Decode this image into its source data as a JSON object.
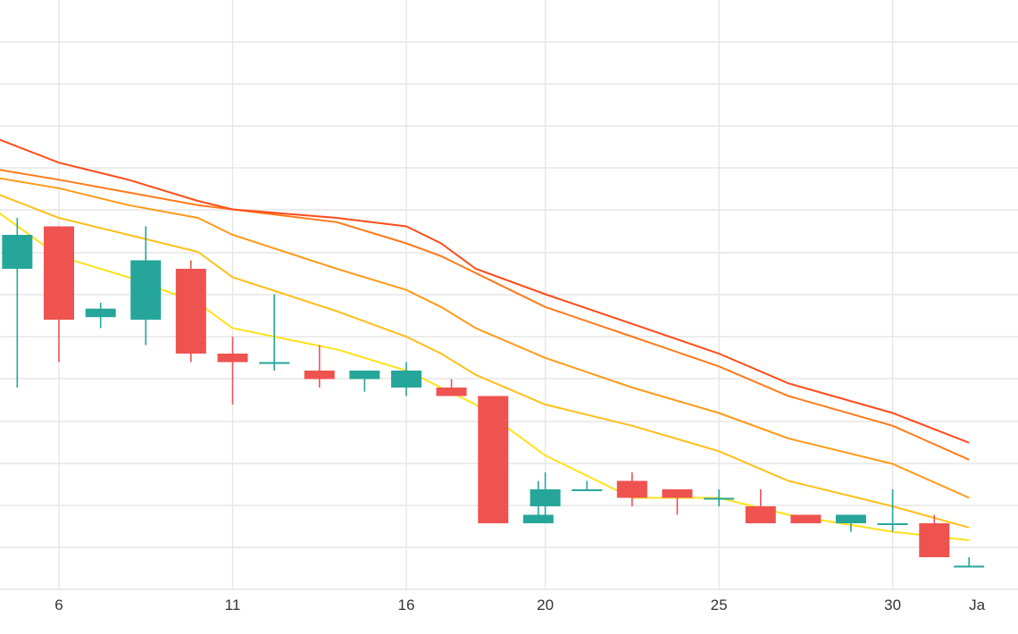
{
  "chart_data": {
    "type": "candlestick",
    "title": "",
    "xlabel": "",
    "ylabel": "",
    "grid": true,
    "y_axis_labels_visible": false,
    "x_tick_labels": [
      {
        "label": "6",
        "day": 6
      },
      {
        "label": "11",
        "day": 11
      },
      {
        "label": "16",
        "day": 16
      },
      {
        "label": "20",
        "day": 20
      },
      {
        "label": "25",
        "day": 25
      },
      {
        "label": "30",
        "day": 30
      },
      {
        "label": "Ja",
        "day": 32.2
      }
    ],
    "colors": {
      "up": "#26a69a",
      "down": "#ef5350",
      "grid": "#e6e6e6"
    },
    "candles": [
      {
        "day": 4.8,
        "open": 8.8,
        "high": 9.4,
        "low": 7.4,
        "close": 9.2
      },
      {
        "day": 6.0,
        "open": 9.3,
        "high": 9.3,
        "low": 7.7,
        "close": 8.2
      },
      {
        "day": 7.2,
        "open": 8.23,
        "high": 8.4,
        "low": 8.1,
        "close": 8.33
      },
      {
        "day": 8.5,
        "open": 8.2,
        "high": 9.3,
        "low": 7.9,
        "close": 8.9
      },
      {
        "day": 9.8,
        "open": 8.8,
        "high": 8.9,
        "low": 7.7,
        "close": 7.8
      },
      {
        "day": 11.0,
        "open": 7.8,
        "high": 8.0,
        "low": 7.2,
        "close": 7.7
      },
      {
        "day": 12.2,
        "open": 7.7,
        "high": 8.5,
        "low": 7.6,
        "close": 7.7
      },
      {
        "day": 13.5,
        "open": 7.6,
        "high": 7.9,
        "low": 7.4,
        "close": 7.5
      },
      {
        "day": 14.8,
        "open": 7.5,
        "high": 7.6,
        "low": 7.35,
        "close": 7.6
      },
      {
        "day": 16.0,
        "open": 7.4,
        "high": 7.7,
        "low": 7.3,
        "close": 7.6
      },
      {
        "day": 17.3,
        "open": 7.4,
        "high": 7.5,
        "low": 7.3,
        "close": 7.3
      },
      {
        "day": 18.5,
        "open": 7.3,
        "high": 7.3,
        "low": 5.8,
        "close": 5.8
      },
      {
        "day": 19.8,
        "open": 5.8,
        "high": 6.3,
        "low": 5.8,
        "close": 5.9
      },
      {
        "day": 20.0,
        "open": 6.0,
        "high": 6.4,
        "low": 5.9,
        "close": 6.2
      },
      {
        "day": 21.2,
        "open": 6.2,
        "high": 6.3,
        "low": 6.2,
        "close": 6.2
      },
      {
        "day": 22.5,
        "open": 6.3,
        "high": 6.4,
        "low": 6.0,
        "close": 6.1
      },
      {
        "day": 23.8,
        "open": 6.2,
        "high": 6.2,
        "low": 5.9,
        "close": 6.1
      },
      {
        "day": 25.0,
        "open": 6.1,
        "high": 6.2,
        "low": 6.0,
        "close": 6.1
      },
      {
        "day": 26.2,
        "open": 6.0,
        "high": 6.2,
        "low": 5.8,
        "close": 5.8
      },
      {
        "day": 27.5,
        "open": 5.9,
        "high": 5.9,
        "low": 5.8,
        "close": 5.8
      },
      {
        "day": 28.8,
        "open": 5.8,
        "high": 5.9,
        "low": 5.7,
        "close": 5.9
      },
      {
        "day": 30.0,
        "open": 5.8,
        "high": 6.2,
        "low": 5.7,
        "close": 5.8
      },
      {
        "day": 31.2,
        "open": 5.8,
        "high": 5.9,
        "low": 5.4,
        "close": 5.4
      },
      {
        "day": 32.2,
        "open": 5.3,
        "high": 5.4,
        "low": 5.3,
        "close": 5.3
      }
    ],
    "moving_averages": [
      {
        "color": "#ffe11a",
        "points": [
          [
            3.8,
            9.6
          ],
          [
            6,
            8.95
          ],
          [
            8,
            8.7
          ],
          [
            10,
            8.4
          ],
          [
            11,
            8.1
          ],
          [
            14,
            7.85
          ],
          [
            16,
            7.6
          ],
          [
            17,
            7.4
          ],
          [
            18,
            7.2
          ],
          [
            20,
            6.6
          ],
          [
            21,
            6.4
          ],
          [
            22.5,
            6.1
          ],
          [
            25,
            6.1
          ],
          [
            27,
            5.9
          ],
          [
            30,
            5.7
          ],
          [
            32.2,
            5.6
          ]
        ]
      },
      {
        "color": "#ffbf1a",
        "points": [
          [
            3.8,
            9.75
          ],
          [
            6,
            9.4
          ],
          [
            8,
            9.2
          ],
          [
            10,
            9.0
          ],
          [
            11,
            8.7
          ],
          [
            14,
            8.3
          ],
          [
            16,
            8.0
          ],
          [
            17,
            7.8
          ],
          [
            18,
            7.55
          ],
          [
            20,
            7.2
          ],
          [
            22.5,
            6.95
          ],
          [
            25,
            6.65
          ],
          [
            27,
            6.3
          ],
          [
            30,
            6.0
          ],
          [
            32.2,
            5.75
          ]
        ]
      },
      {
        "color": "#ff9a1a",
        "points": [
          [
            3.8,
            9.9
          ],
          [
            6,
            9.75
          ],
          [
            8,
            9.55
          ],
          [
            10,
            9.4
          ],
          [
            11,
            9.2
          ],
          [
            14,
            8.8
          ],
          [
            16,
            8.55
          ],
          [
            17,
            8.35
          ],
          [
            18,
            8.1
          ],
          [
            20,
            7.75
          ],
          [
            22.5,
            7.4
          ],
          [
            25,
            7.1
          ],
          [
            27,
            6.8
          ],
          [
            30,
            6.5
          ],
          [
            32.2,
            6.1
          ]
        ]
      },
      {
        "color": "#ff7a1a",
        "points": [
          [
            3.8,
            10.0
          ],
          [
            6,
            9.85
          ],
          [
            8,
            9.7
          ],
          [
            10,
            9.55
          ],
          [
            11,
            9.5
          ],
          [
            14,
            9.35
          ],
          [
            16,
            9.1
          ],
          [
            17,
            8.95
          ],
          [
            18,
            8.75
          ],
          [
            20,
            8.35
          ],
          [
            22.5,
            8.0
          ],
          [
            25,
            7.65
          ],
          [
            27,
            7.3
          ],
          [
            30,
            6.95
          ],
          [
            32.2,
            6.55
          ]
        ]
      },
      {
        "color": "#ff4c1a",
        "points": [
          [
            3.8,
            10.4
          ],
          [
            6,
            10.05
          ],
          [
            8,
            9.85
          ],
          [
            10,
            9.6
          ],
          [
            11,
            9.5
          ],
          [
            14,
            9.4
          ],
          [
            16,
            9.3
          ],
          [
            17,
            9.1
          ],
          [
            18,
            8.8
          ],
          [
            20,
            8.5
          ],
          [
            22.5,
            8.15
          ],
          [
            25,
            7.8
          ],
          [
            27,
            7.45
          ],
          [
            30,
            7.1
          ],
          [
            32.2,
            6.75
          ]
        ]
      }
    ]
  }
}
